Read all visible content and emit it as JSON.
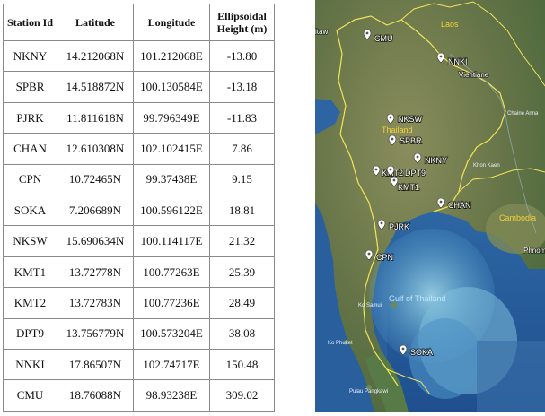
{
  "table": {
    "headers": [
      "Station Id",
      "Latitude",
      "Longitude",
      "Ellipsoidal Height (m)"
    ],
    "header_lines": [
      [
        "Station Id"
      ],
      [
        "Latitude"
      ],
      [
        "Longitude"
      ],
      [
        "Ellipsoidal",
        "Height (m)"
      ]
    ],
    "rows": [
      [
        "NKNY",
        "14.212068N",
        "101.212068E",
        "-13.80"
      ],
      [
        "SPBR",
        "14.518872N",
        "100.130584E",
        "-13.18"
      ],
      [
        "PJRK",
        "11.811618N",
        "99.796349E",
        "-11.83"
      ],
      [
        "CHAN",
        "12.610308N",
        "102.102415E",
        "7.86"
      ],
      [
        "CPN",
        "10.72465N",
        "99.37438E",
        "9.15"
      ],
      [
        "SOKA",
        "7.206689N",
        "100.596122E",
        "18.81"
      ],
      [
        "NKSW",
        "15.690634N",
        "100.114117E",
        "21.32"
      ],
      [
        "KMT1",
        "13.72778N",
        "100.77263E",
        "25.39"
      ],
      [
        "KMT2",
        "13.72783N",
        "100.77236E",
        "28.49"
      ],
      [
        "DPT9",
        "13.756779N",
        "100.573204E",
        "38.08"
      ],
      [
        "NNKI",
        "17.86507N",
        "102.74717E",
        "150.48"
      ],
      [
        "CMU",
        "18.76088N",
        "98.93238E",
        "309.02"
      ]
    ]
  },
  "map": {
    "countries": [
      "Laos",
      "Thailand",
      "Cambodia"
    ],
    "sea_labels": [
      "Gulf of Thailand"
    ],
    "places": [
      "Vientiane",
      "Khon Kaen",
      "Chaine Anna",
      "Ko Samui",
      "Ko Phuket",
      "Pulau Pangkawi",
      "Phnom",
      "itaw"
    ],
    "stations": [
      "CMU",
      "NNKI",
      "NKSW",
      "SPBR",
      "NKNY",
      "KMT2",
      "DPT9",
      "KMT1",
      "CHAN",
      "PJRK",
      "CPN",
      "SOKA"
    ],
    "colors": {
      "land": "#6b7a52",
      "sea": "#2f6fb0",
      "shallow": "#8fc8e0",
      "border": "#f5e55a"
    }
  }
}
